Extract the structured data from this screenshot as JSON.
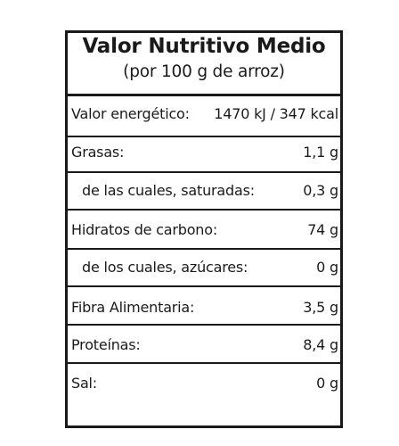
{
  "table": {
    "title": "Valor Nutritivo Medio",
    "subtitle": "(por 100 g de arroz)",
    "rows": [
      {
        "label": "Valor energético:",
        "value": "1470 kJ / 347 kcal"
      },
      {
        "label": "Grasas:",
        "value": "1,1 g"
      },
      {
        "label": "de las cuales, saturadas:",
        "value": "0,3 g"
      },
      {
        "label": "Hidratos de carbono:",
        "value": "74 g"
      },
      {
        "label": "de los cuales, azúcares:",
        "value": "0 g"
      },
      {
        "label": "Fibra Alimentaria:",
        "value": "3,5 g"
      },
      {
        "label": "Proteínas:",
        "value": "8,4 g"
      },
      {
        "label": "Sal:",
        "value": "0 g"
      }
    ]
  }
}
